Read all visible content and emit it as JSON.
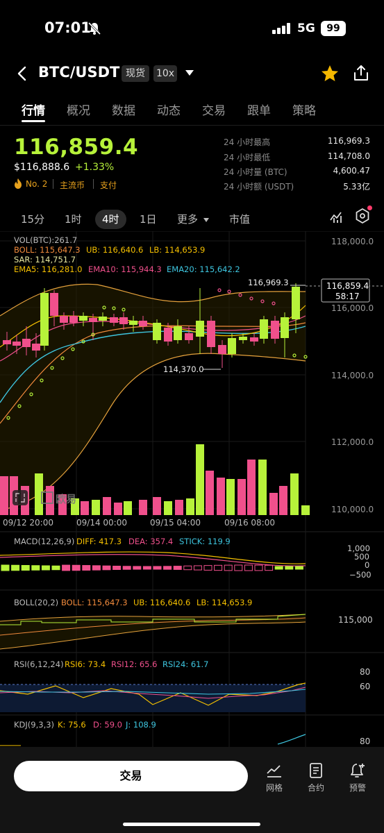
{
  "status_bar": {
    "time": "07:01",
    "network": "5G",
    "battery": "99"
  },
  "header": {
    "pair": "BTC/USDT",
    "spot_chip": "现货",
    "leverage_chip": "10x"
  },
  "tabs": [
    "行情",
    "概况",
    "数据",
    "动态",
    "交易",
    "跟单",
    "策略"
  ],
  "price": {
    "last": "116,859.4",
    "usd": "$116,888.6",
    "change": "+1.33%",
    "rank": "No. 2",
    "tag1": "主流币",
    "tag2": "支付"
  },
  "stats": [
    {
      "label": "24 小时最高",
      "value": "116,969.3"
    },
    {
      "label": "24 小时最低",
      "value": "114,708.0"
    },
    {
      "label": "24 小时量 (BTC)",
      "value": "4,600.47"
    },
    {
      "label": "24 小时额 (USDT)",
      "value": "5.33亿"
    }
  ],
  "timeframes": {
    "m15": "15分",
    "h1": "1时",
    "h4": "4时",
    "d1": "1日",
    "more": "更多",
    "mcap": "市值"
  },
  "main_chart": {
    "vol_label": "VOL(BTC):261.7",
    "boll": "BOLL: 115,647.3",
    "ub": "UB: 116,640.6",
    "lb": "LB: 114,653.9",
    "sar": "SAR: 114,751.7",
    "ema5": "EMA5: 116,281.0",
    "ema10": "EMA10: 115,944.3",
    "ema20": "EMA20: 115,642.2",
    "y_ticks": [
      "118,000.0",
      "116,000.0",
      "114,000.0",
      "112,000.0",
      "110,000.0"
    ],
    "x_ticks": [
      "09/12 20:00",
      "09/14 00:00",
      "09/15 04:00",
      "09/16 08:00"
    ],
    "high_label": "116,969.3",
    "low_label": "114,370.0",
    "current_price": "116,859.4",
    "countdown": "58:17",
    "watermark": "欧易",
    "colors": {
      "up": "#b7f23a",
      "down": "#f0508c"
    }
  },
  "macd": {
    "label": "MACD(12,26,9)",
    "diff": "DIFF: 417.3",
    "dea": "DEA: 357.4",
    "stick": "STICK: 119.9",
    "y_ticks": [
      "1,000",
      "500",
      "0",
      "−500"
    ]
  },
  "boll_panel": {
    "label": "BOLL(20,2)",
    "boll": "BOLL: 115,647.3",
    "ub": "UB: 116,640.6",
    "lb": "LB: 114,653.9",
    "y_tick": "115,000"
  },
  "rsi": {
    "label": "RSI(6,12,24)",
    "rsi6": "RSI6: 73.4",
    "rsi12": "RSI12: 65.6",
    "rsi24": "RSI24: 61.7",
    "y_ticks": [
      "80",
      "60"
    ]
  },
  "kdj": {
    "label": "KDJ(9,3,3)",
    "k": "K: 75.6",
    "d": "D: 59.0",
    "j": "J: 108.9",
    "y_tick": "80"
  },
  "bottom": {
    "trade": "交易",
    "grid": "网格",
    "contract": "合约",
    "alert": "预警"
  }
}
